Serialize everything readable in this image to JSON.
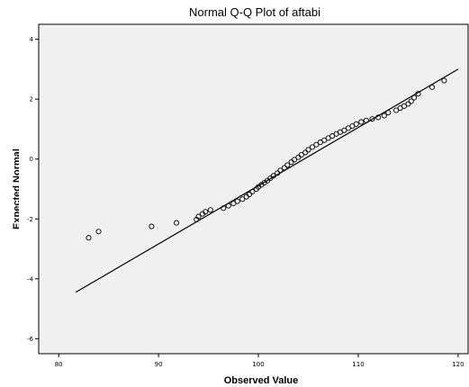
{
  "chart_data": {
    "type": "scatter",
    "title": "Normal Q-Q Plot of aftabi",
    "xlabel": "Observed Value",
    "ylabel": "Expected Normal",
    "xlim": [
      78,
      121
    ],
    "ylim": [
      -6.5,
      4.5
    ],
    "xticks": [
      80,
      90,
      100,
      110,
      120
    ],
    "yticks": [
      -6,
      -4,
      -2,
      0,
      2,
      4
    ],
    "xtick_labels": [
      "80",
      "90",
      "100",
      "110",
      "120"
    ],
    "ytick_labels": [
      "-6",
      "-4",
      "-2",
      "0",
      "2",
      "4"
    ],
    "grid": false,
    "reference_line": {
      "x": [
        81.7,
        120.0
      ],
      "y": [
        -4.45,
        3.0
      ]
    },
    "points": {
      "x": [
        83.0,
        84.0,
        89.3,
        91.8,
        93.8,
        94.0,
        94.4,
        94.7,
        95.2,
        96.5,
        97.0,
        97.5,
        97.9,
        98.4,
        98.8,
        99.1,
        99.4,
        99.8,
        100.0,
        100.3,
        100.6,
        100.9,
        101.2,
        101.5,
        101.9,
        102.2,
        102.6,
        102.9,
        103.3,
        103.6,
        104.0,
        104.3,
        104.7,
        105.0,
        105.4,
        105.8,
        106.2,
        106.6,
        107.0,
        107.4,
        107.8,
        108.2,
        108.6,
        109.0,
        109.4,
        109.8,
        110.3,
        110.8,
        111.4,
        112.0,
        112.6,
        113.0,
        113.8,
        114.2,
        114.6,
        115.0,
        115.3,
        115.6,
        116.0,
        117.4,
        118.6
      ],
      "y": [
        -2.63,
        -2.42,
        -2.25,
        -2.13,
        -2.02,
        -1.92,
        -1.83,
        -1.76,
        -1.7,
        -1.64,
        -1.56,
        -1.48,
        -1.41,
        -1.34,
        -1.26,
        -1.18,
        -1.09,
        -1.0,
        -0.93,
        -0.86,
        -0.79,
        -0.72,
        -0.64,
        -0.56,
        -0.47,
        -0.38,
        -0.29,
        -0.2,
        -0.1,
        -0.02,
        0.06,
        0.14,
        0.22,
        0.31,
        0.4,
        0.48,
        0.56,
        0.63,
        0.7,
        0.77,
        0.84,
        0.9,
        0.96,
        1.03,
        1.1,
        1.17,
        1.24,
        1.29,
        1.34,
        1.39,
        1.45,
        1.55,
        1.63,
        1.7,
        1.77,
        1.84,
        1.93,
        2.05,
        2.18,
        2.4,
        2.62
      ]
    }
  }
}
